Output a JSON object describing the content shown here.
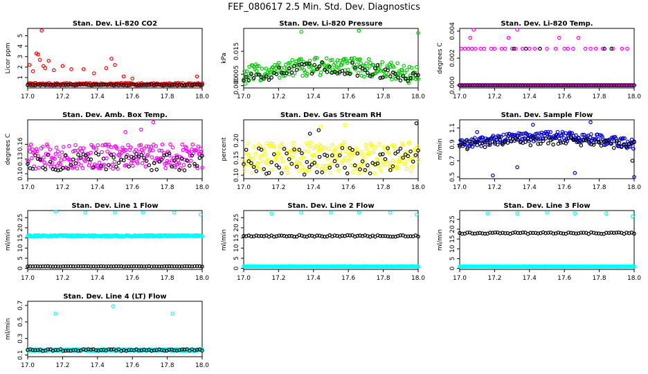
{
  "figure": {
    "title": "FEF_080617  2.5 Min. Std. Dev. Diagnostics"
  },
  "chart_data": [
    {
      "type": "scatter",
      "title": "Stan. Dev. Li-820 CO2",
      "ylabel": "Licor ppm",
      "xlim": [
        17.0,
        18.0
      ],
      "ylim": [
        0,
        5.7
      ],
      "xticks": [
        "17.0",
        "17.2",
        "17.4",
        "17.6",
        "17.8",
        "18.0"
      ],
      "yticks": [
        {
          "v": 1,
          "label": "1"
        },
        {
          "v": 2,
          "label": "2"
        },
        {
          "v": 3,
          "label": "3"
        },
        {
          "v": 4,
          "label": "4"
        },
        {
          "v": 5,
          "label": "5"
        }
      ],
      "series": [
        {
          "color": "#ff0000",
          "base": 0.35,
          "base_noise": 0.12,
          "outliers": [
            [
              17.01,
              2.2
            ],
            [
              17.03,
              1.6
            ],
            [
              17.05,
              3.3
            ],
            [
              17.06,
              3.2
            ],
            [
              17.07,
              2.7
            ],
            [
              17.08,
              5.5
            ],
            [
              17.09,
              2.1
            ],
            [
              17.1,
              1.9
            ],
            [
              17.12,
              2.6
            ],
            [
              17.15,
              1.7
            ],
            [
              17.2,
              2.1
            ],
            [
              17.25,
              1.8
            ],
            [
              17.32,
              1.8
            ],
            [
              17.38,
              1.4
            ],
            [
              17.45,
              1.9
            ],
            [
              17.48,
              2.8
            ],
            [
              17.5,
              2.2
            ],
            [
              17.55,
              1.1
            ],
            [
              17.6,
              0.9
            ],
            [
              17.97,
              1.1
            ]
          ]
        },
        {
          "color": "#000000",
          "base": 0.3,
          "base_noise": 0.05,
          "outliers": []
        }
      ]
    },
    {
      "type": "scatter",
      "title": "Stan. Dev. Li-820 Pressure",
      "ylabel": "kPa",
      "xlim": [
        17.0,
        18.0
      ],
      "ylim": [
        -0.001,
        0.025
      ],
      "xticks": [
        "17.0",
        "17.2",
        "17.4",
        "17.6",
        "17.8",
        "18.0"
      ],
      "yticks": [
        {
          "v": 0.0,
          "label": "0.000"
        },
        {
          "v": 0.005,
          "label": "0.005"
        },
        {
          "v": 0.015,
          "label": "0.015"
        }
      ],
      "series": [
        {
          "color": "#00cc00",
          "base": 0.0045,
          "base_noise": 0.004,
          "bump": 0.004,
          "outliers": [
            [
              17.33,
              0.0235
            ],
            [
              17.66,
              0.024
            ],
            [
              18.0,
              0.023
            ]
          ]
        },
        {
          "color": "#000000",
          "base": 0.0035,
          "base_noise": 0.003,
          "bump": 0.004,
          "outliers": []
        }
      ]
    },
    {
      "type": "scatter",
      "title": "Stan. Dev. Li-820 Temp.",
      "ylabel": "degrees C",
      "xlim": [
        17.0,
        18.0
      ],
      "ylim": [
        -0.0002,
        0.0042
      ],
      "xticks": [
        "17.0",
        "17.2",
        "17.4",
        "17.6",
        "17.8",
        "18.0"
      ],
      "yticks": [
        {
          "v": 0.0,
          "label": "0.000"
        },
        {
          "v": 0.002,
          "label": "0.002"
        },
        {
          "v": 0.004,
          "label": "0.004"
        }
      ],
      "series": [
        {
          "color": "#ff00ff",
          "base": 0.0,
          "base_noise": 0.0,
          "outliers": [
            [
              17.01,
              0.0027
            ],
            [
              17.03,
              0.0027
            ],
            [
              17.05,
              0.0027
            ],
            [
              17.07,
              0.0027
            ],
            [
              17.09,
              0.0027
            ],
            [
              17.06,
              0.0035
            ],
            [
              17.08,
              0.0041
            ],
            [
              17.12,
              0.0027
            ],
            [
              17.14,
              0.0027
            ],
            [
              17.18,
              0.0027
            ],
            [
              17.2,
              0.0027
            ],
            [
              17.24,
              0.0027
            ],
            [
              17.26,
              0.0027
            ],
            [
              17.28,
              0.0035
            ],
            [
              17.3,
              0.0027
            ],
            [
              17.32,
              0.0027
            ],
            [
              17.33,
              0.0041
            ],
            [
              17.36,
              0.0027
            ],
            [
              17.4,
              0.0027
            ],
            [
              17.43,
              0.0027
            ],
            [
              17.46,
              0.0027
            ],
            [
              17.5,
              0.0027
            ],
            [
              17.55,
              0.0027
            ],
            [
              17.57,
              0.0035
            ],
            [
              17.6,
              0.0027
            ],
            [
              17.62,
              0.0027
            ],
            [
              17.65,
              0.0027
            ],
            [
              17.68,
              0.0035
            ],
            [
              17.72,
              0.0027
            ],
            [
              17.75,
              0.0027
            ],
            [
              17.78,
              0.0027
            ],
            [
              17.82,
              0.0027
            ],
            [
              17.88,
              0.0027
            ],
            [
              17.93,
              0.0027
            ],
            [
              17.96,
              0.0027
            ]
          ]
        },
        {
          "color": "#000000",
          "base": 0.0,
          "base_noise": 0.0,
          "outliers": [
            [
              17.31,
              0.0027
            ],
            [
              17.38,
              0.0027
            ],
            [
              17.46,
              0.0027
            ],
            [
              17.83,
              0.0027
            ],
            [
              17.87,
              0.0027
            ]
          ]
        }
      ]
    },
    {
      "type": "scatter",
      "title": "Stan. Dev. Amb. Box Temp.",
      "ylabel": "degrees C",
      "xlim": [
        17.0,
        18.0
      ],
      "ylim": [
        0.09,
        0.21
      ],
      "xticks": [
        "17.0",
        "17.2",
        "17.4",
        "17.6",
        "17.8",
        "18.0"
      ],
      "yticks": [
        {
          "v": 0.1,
          "label": "0.10"
        },
        {
          "v": 0.13,
          "label": "0.13"
        },
        {
          "v": 0.16,
          "label": "0.16"
        }
      ],
      "series": [
        {
          "color": "#ff00ff",
          "base": 0.135,
          "base_noise": 0.025,
          "outliers": [
            [
              17.72,
              0.205
            ],
            [
              17.65,
              0.19
            ],
            [
              17.56,
              0.185
            ]
          ]
        },
        {
          "color": "#000000",
          "base": 0.125,
          "base_noise": 0.018,
          "outliers": []
        }
      ]
    },
    {
      "type": "scatter",
      "title": "Stan. Dev. Gas Stream RH",
      "ylabel": "percent",
      "xlim": [
        17.0,
        18.0
      ],
      "ylim": [
        0.09,
        0.26
      ],
      "xticks": [
        "17.0",
        "17.2",
        "17.4",
        "17.6",
        "17.8",
        "18.0"
      ],
      "yticks": [
        {
          "v": 0.1,
          "label": "0.10"
        },
        {
          "v": 0.15,
          "label": "0.15"
        },
        {
          "v": 0.2,
          "label": "0.20"
        }
      ],
      "series": [
        {
          "color": "#ffff00",
          "base": 0.15,
          "base_noise": 0.045,
          "outliers": [
            [
              17.58,
              0.245
            ],
            [
              17.44,
              0.24
            ]
          ]
        },
        {
          "color": "#000000",
          "base": 0.14,
          "base_noise": 0.04,
          "outliers": [
            [
              17.99,
              0.25
            ],
            [
              17.38,
              0.22
            ],
            [
              17.43,
              0.23
            ]
          ]
        }
      ]
    },
    {
      "type": "scatter",
      "title": "Stan. Dev. Sample Flow",
      "ylabel": "ml/min",
      "xlim": [
        17.0,
        18.0
      ],
      "ylim": [
        0.48,
        1.2
      ],
      "xticks": [
        "17.0",
        "17.2",
        "17.4",
        "17.6",
        "17.8",
        "18.0"
      ],
      "yticks": [
        {
          "v": 0.5,
          "label": "0.5"
        },
        {
          "v": 0.7,
          "label": "0.7"
        },
        {
          "v": 0.9,
          "label": "0.9"
        },
        {
          "v": 1.1,
          "label": "1.1"
        }
      ],
      "series": [
        {
          "color": "#0000cc",
          "base": 0.9,
          "base_noise": 0.06,
          "bump": 0.1,
          "outliers": [
            [
              17.19,
              0.52
            ],
            [
              17.33,
              0.62
            ],
            [
              17.42,
              1.14
            ],
            [
              17.75,
              1.17
            ],
            [
              17.66,
              0.55
            ],
            [
              18.0,
              0.5
            ],
            [
              17.1,
              1.05
            ]
          ]
        },
        {
          "color": "#000000",
          "base": 0.88,
          "base_noise": 0.05,
          "bump": 0.06,
          "outliers": [
            [
              17.99,
              0.7
            ]
          ]
        }
      ]
    },
    {
      "type": "scatter",
      "title": "Stan. Dev. Line 1 Flow",
      "ylabel": "ml/min",
      "xlim": [
        17.0,
        18.0
      ],
      "ylim": [
        -0.5,
        28.5
      ],
      "xticks": [
        "17.0",
        "17.2",
        "17.4",
        "17.6",
        "17.8",
        "18.0"
      ],
      "yticks": [
        {
          "v": 0,
          "label": "0"
        },
        {
          "v": 5,
          "label": "5"
        },
        {
          "v": 10,
          "label": "10"
        },
        {
          "v": 15,
          "label": "15"
        },
        {
          "v": 20,
          "label": "20"
        },
        {
          "v": 25,
          "label": "25"
        }
      ],
      "series": [
        {
          "color": "#00ffff",
          "base": 16.0,
          "base_noise": 0.4,
          "dense": true,
          "outliers": [
            [
              17.16,
              28
            ],
            [
              17.33,
              27.5
            ],
            [
              17.5,
              27.5
            ],
            [
              17.66,
              27.5
            ],
            [
              17.84,
              27.5
            ],
            [
              17.99,
              26.5
            ]
          ]
        },
        {
          "color": "#000000",
          "base": 1.0,
          "base_noise": 0.1,
          "outliers": []
        }
      ]
    },
    {
      "type": "scatter",
      "title": "Stan. Dev. Line 2 Flow",
      "ylabel": "ml/min",
      "xlim": [
        17.0,
        18.0
      ],
      "ylim": [
        -0.5,
        28.5
      ],
      "xticks": [
        "17.0",
        "17.2",
        "17.4",
        "17.6",
        "17.8",
        "18.0"
      ],
      "yticks": [
        {
          "v": 0,
          "label": "0"
        },
        {
          "v": 5,
          "label": "5"
        },
        {
          "v": 10,
          "label": "10"
        },
        {
          "v": 15,
          "label": "15"
        },
        {
          "v": 20,
          "label": "20"
        },
        {
          "v": 25,
          "label": "25"
        }
      ],
      "series": [
        {
          "color": "#00ffff",
          "base": 1.0,
          "base_noise": 0.1,
          "dense": true,
          "outliers": [
            [
              17.16,
              27
            ],
            [
              17.33,
              27.5
            ],
            [
              17.5,
              27.5
            ],
            [
              17.66,
              27.5
            ],
            [
              17.84,
              27.5
            ],
            [
              17.99,
              26.5
            ]
          ]
        },
        {
          "color": "#000000",
          "base": 16.0,
          "base_noise": 0.4,
          "outliers": []
        }
      ]
    },
    {
      "type": "scatter",
      "title": "Stan. Dev. Line 3 Flow",
      "ylabel": "ml/min",
      "xlim": [
        17.0,
        18.0
      ],
      "ylim": [
        -0.5,
        29.5
      ],
      "xticks": [
        "17.0",
        "17.2",
        "17.4",
        "17.6",
        "17.8",
        "18.0"
      ],
      "yticks": [
        {
          "v": 0,
          "label": "0"
        },
        {
          "v": 5,
          "label": "5"
        },
        {
          "v": 10,
          "label": "10"
        },
        {
          "v": 15,
          "label": "15"
        },
        {
          "v": 20,
          "label": "20"
        },
        {
          "v": 25,
          "label": "25"
        }
      ],
      "series": [
        {
          "color": "#00ffff",
          "base": 1.0,
          "base_noise": 0.1,
          "dense": true,
          "outliers": [
            [
              17.16,
              28
            ],
            [
              17.33,
              28
            ],
            [
              17.5,
              28.5
            ],
            [
              17.66,
              28
            ],
            [
              17.84,
              28
            ],
            [
              17.99,
              26.5
            ]
          ]
        },
        {
          "color": "#000000",
          "base": 18.0,
          "base_noise": 0.4,
          "outliers": []
        }
      ]
    },
    {
      "type": "scatter",
      "title": "Stan. Dev. Line 4 (LT) Flow",
      "ylabel": "ml/min",
      "xlim": [
        17.0,
        18.0
      ],
      "ylim": [
        0.08,
        0.75
      ],
      "xticks": [
        "17.0",
        "17.2",
        "17.4",
        "17.6",
        "17.8",
        "18.0"
      ],
      "yticks": [
        {
          "v": 0.1,
          "label": "0.1"
        },
        {
          "v": 0.3,
          "label": "0.3"
        },
        {
          "v": 0.5,
          "label": "0.5"
        },
        {
          "v": 0.7,
          "label": "0.7"
        }
      ],
      "series": [
        {
          "color": "#00ffff",
          "base": 0.16,
          "base_noise": 0.012,
          "dense": true,
          "outliers": [
            [
              17.16,
              0.6
            ],
            [
              17.49,
              0.69
            ],
            [
              17.83,
              0.6
            ]
          ]
        },
        {
          "color": "#000000",
          "base": 0.16,
          "base_noise": 0.01,
          "outliers": []
        }
      ]
    }
  ]
}
